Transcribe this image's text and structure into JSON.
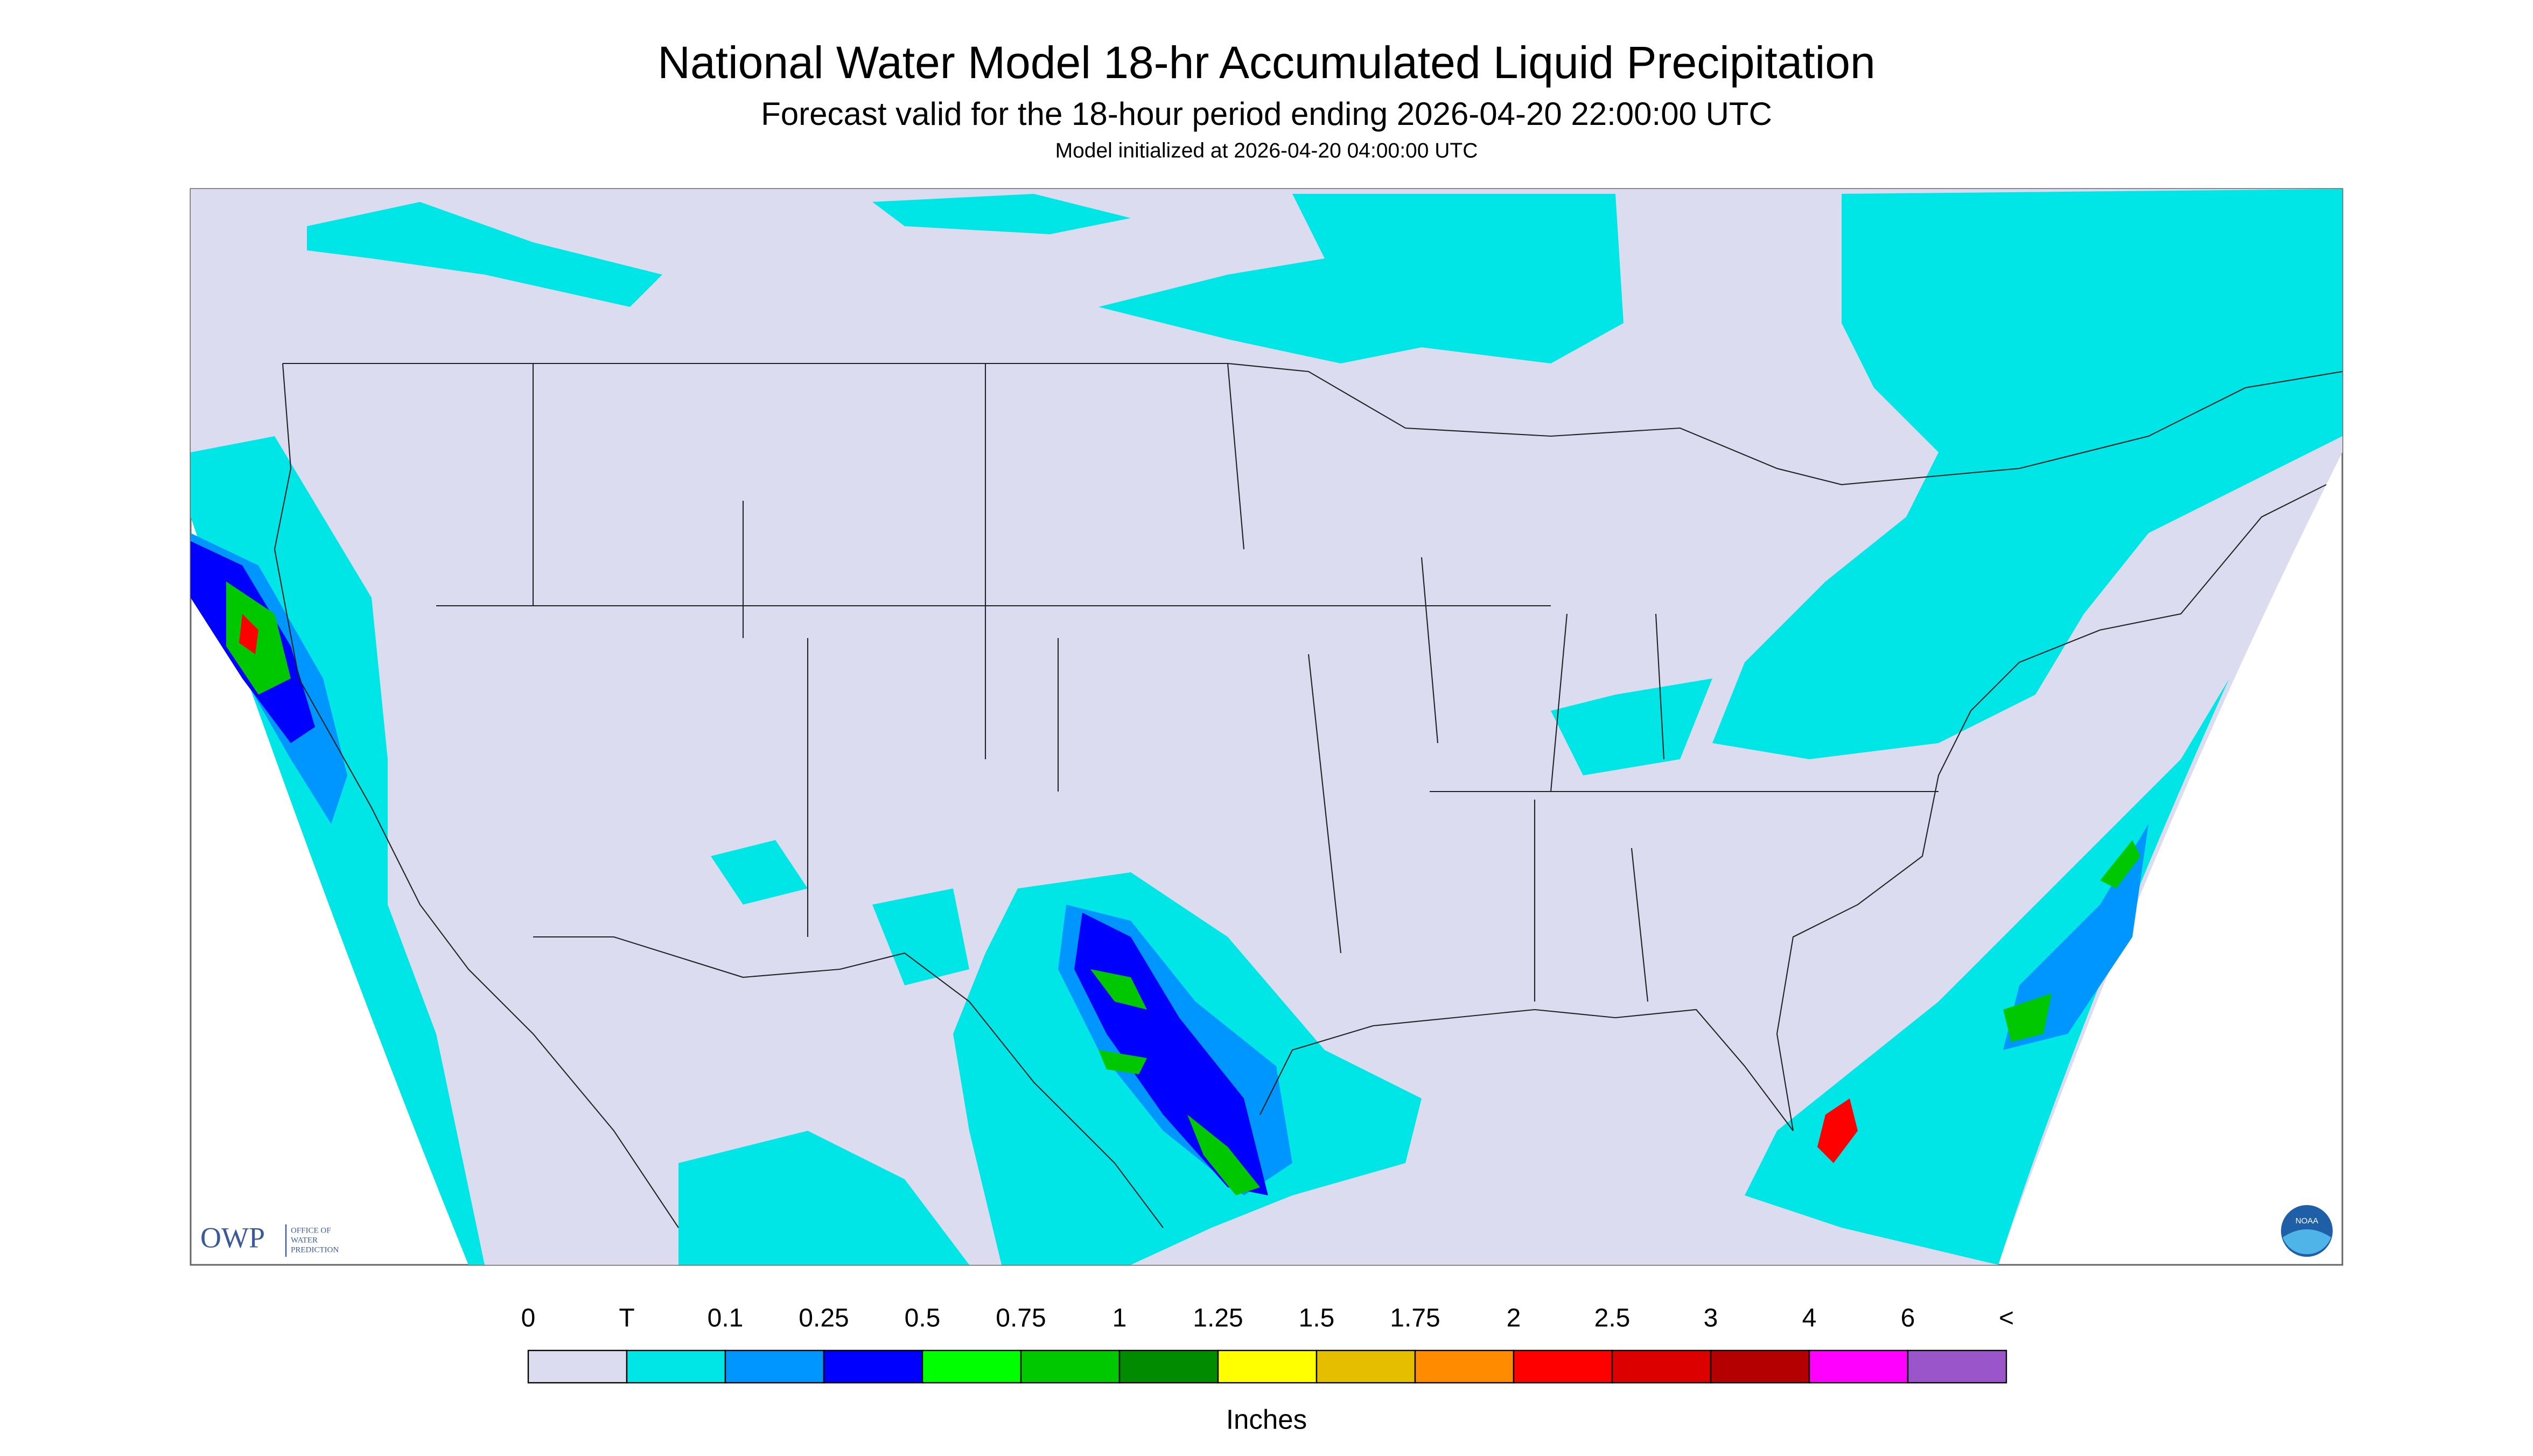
{
  "header": {
    "title": "National Water Model 18-hr Accumulated Liquid Precipitation",
    "subtitle": "Forecast valid for the 18-hour period ending 2026-04-20 22:00:00 UTC",
    "init": "Model initialized at 2026-04-20 04:00:00 UTC"
  },
  "legend": {
    "labels": [
      "0",
      "T",
      "0.1",
      "0.25",
      "0.5",
      "0.75",
      "1",
      "1.25",
      "1.5",
      "1.75",
      "2",
      "2.5",
      "3",
      "4",
      "6",
      "<"
    ],
    "colors": [
      "#dcdcf0",
      "#00e6e6",
      "#0096ff",
      "#0000ff",
      "#00ff00",
      "#00c800",
      "#008c00",
      "#ffff00",
      "#e6be00",
      "#ff8c00",
      "#ff0000",
      "#dc0000",
      "#b40000",
      "#ff00ff",
      "#9955c9"
    ],
    "unit": "Inches"
  },
  "logos": {
    "owp": "OWP",
    "owp_text": [
      "OFFICE OF",
      "WATER",
      "PREDICTION"
    ],
    "noaa": "NOAA"
  }
}
